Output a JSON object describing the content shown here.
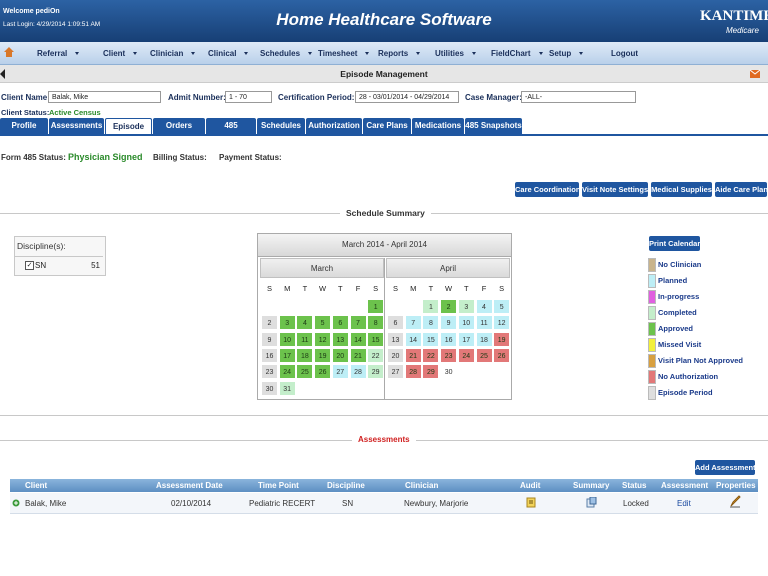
{
  "header": {
    "welcome": "Welcome pediOn",
    "last_login": "Last Login: 4/29/2014 1:09:51 AM",
    "title": "Home Healthcare Software",
    "logo": "KANTIME",
    "logo_sub": "Medicare"
  },
  "nav": [
    "Referral",
    "Client",
    "Clinician",
    "Clinical",
    "Schedules",
    "Timesheet",
    "Reports",
    "Utilities",
    "FieldChart",
    "Setup",
    "Logout"
  ],
  "page_title": "Episode Management",
  "filters": {
    "client_label": "Client Name:",
    "client": "Balak, Mike",
    "admit_label": "Admit Number:",
    "admit": "1 - 70",
    "cert_label": "Certification Period:",
    "cert": "28 - 03/01/2014 - 04/29/2014",
    "case_label": "Case Manager:",
    "case": "-ALL-"
  },
  "client_status": {
    "label": "Client Status:",
    "value": "Active Census"
  },
  "tabs": [
    "Profile",
    "Assessments",
    "Episode",
    "Orders",
    "485",
    "Schedules",
    "Authorization",
    "Care Plans",
    "Medications",
    "485 Snapshots"
  ],
  "status": {
    "form485_label": "Form 485 Status:",
    "form485": "Physician Signed",
    "billing_label": "Billing Status:",
    "payment_label": "Payment Status:"
  },
  "buttons": [
    "Care Coordination",
    "Visit Note Settings",
    "Medical Supplies",
    "Aide Care Plan"
  ],
  "schedule_summary": "Schedule Summary",
  "discipline": {
    "header": "Discipline(s):",
    "rows": [
      {
        "name": "SN",
        "count": 51
      }
    ]
  },
  "calendar": {
    "title": "March 2014 - April 2014",
    "weekdays": [
      "S",
      "M",
      "T",
      "W",
      "T",
      "F",
      "S"
    ],
    "months": [
      {
        "name": "March",
        "weeks": [
          [
            null,
            null,
            null,
            null,
            null,
            null,
            {
              "day": 1,
              "status": "Approved"
            }
          ],
          [
            {
              "day": 2,
              "status": "Episode Period"
            },
            {
              "day": 3,
              "status": "Approved"
            },
            {
              "day": 4,
              "status": "Approved"
            },
            {
              "day": 5,
              "status": "Approved"
            },
            {
              "day": 6,
              "status": "Approved"
            },
            {
              "day": 7,
              "status": "Approved"
            },
            {
              "day": 8,
              "status": "Approved"
            }
          ],
          [
            {
              "day": 9,
              "status": "Episode Period"
            },
            {
              "day": 10,
              "status": "Approved"
            },
            {
              "day": 11,
              "status": "Approved"
            },
            {
              "day": 12,
              "status": "Approved"
            },
            {
              "day": 13,
              "status": "Approved"
            },
            {
              "day": 14,
              "status": "Approved"
            },
            {
              "day": 15,
              "status": "Approved"
            }
          ],
          [
            {
              "day": 16,
              "status": "Episode Period"
            },
            {
              "day": 17,
              "status": "Approved"
            },
            {
              "day": 18,
              "status": "Approved"
            },
            {
              "day": 19,
              "status": "Approved"
            },
            {
              "day": 20,
              "status": "Approved"
            },
            {
              "day": 21,
              "status": "Approved"
            },
            {
              "day": 22,
              "status": "Completed"
            }
          ],
          [
            {
              "day": 23,
              "status": "Episode Period"
            },
            {
              "day": 24,
              "status": "Approved"
            },
            {
              "day": 25,
              "status": "Approved"
            },
            {
              "day": 26,
              "status": "Approved"
            },
            {
              "day": 27,
              "status": "Planned"
            },
            {
              "day": 28,
              "status": "Planned"
            },
            {
              "day": 29,
              "status": "Completed"
            }
          ],
          [
            {
              "day": 30,
              "status": "Episode Period"
            },
            {
              "day": 31,
              "status": "Completed"
            },
            null,
            null,
            null,
            null,
            null
          ]
        ]
      },
      {
        "name": "April",
        "weeks": [
          [
            null,
            null,
            {
              "day": 1,
              "status": "Completed"
            },
            {
              "day": 2,
              "status": "Approved"
            },
            {
              "day": 3,
              "status": "Completed"
            },
            {
              "day": 4,
              "status": "Planned"
            },
            {
              "day": 5,
              "status": "Planned"
            }
          ],
          [
            {
              "day": 6,
              "status": "Episode Period"
            },
            {
              "day": 7,
              "status": "Planned"
            },
            {
              "day": 8,
              "status": "Planned"
            },
            {
              "day": 9,
              "status": "Planned"
            },
            {
              "day": 10,
              "status": "Planned"
            },
            {
              "day": 11,
              "status": "Planned"
            },
            {
              "day": 12,
              "status": "Planned"
            }
          ],
          [
            {
              "day": 13,
              "status": "Episode Period"
            },
            {
              "day": 14,
              "status": "Planned"
            },
            {
              "day": 15,
              "status": "Planned"
            },
            {
              "day": 16,
              "status": "Planned"
            },
            {
              "day": 17,
              "status": "Planned"
            },
            {
              "day": 18,
              "status": "Planned"
            },
            {
              "day": 19,
              "status": "No Authorization"
            }
          ],
          [
            {
              "day": 20,
              "status": "Episode Period"
            },
            {
              "day": 21,
              "status": "No Authorization"
            },
            {
              "day": 22,
              "status": "No Authorization"
            },
            {
              "day": 23,
              "status": "No Authorization"
            },
            {
              "day": 24,
              "status": "No Authorization"
            },
            {
              "day": 25,
              "status": "No Authorization"
            },
            {
              "day": 26,
              "status": "No Authorization"
            }
          ],
          [
            {
              "day": 27,
              "status": "Episode Period"
            },
            {
              "day": 28,
              "status": "No Authorization"
            },
            {
              "day": 29,
              "status": "No Authorization"
            },
            {
              "day": 30
            },
            null,
            null,
            null
          ]
        ]
      }
    ]
  },
  "print_calendar": "Print Calendar",
  "legend": [
    {
      "label": "No Clinician",
      "color": "#c9b48c"
    },
    {
      "label": "Planned",
      "color": "#bdeef6"
    },
    {
      "label": "In-progress",
      "color": "#e060e0"
    },
    {
      "label": "Completed",
      "color": "#c4eecb"
    },
    {
      "label": "Approved",
      "color": "#6cc24c"
    },
    {
      "label": "Missed Visit",
      "color": "#f2f03c"
    },
    {
      "label": "Visit Plan Not Approved",
      "color": "#d8a040"
    },
    {
      "label": "No Authorization",
      "color": "#e27878"
    },
    {
      "label": "Episode Period",
      "color": "#dedede"
    }
  ],
  "assessments": {
    "title": "Assessments",
    "add_button": "Add Assessment",
    "columns": [
      "Client",
      "Assessment Date",
      "Time Point",
      "Discipline",
      "Clinician",
      "Audit",
      "Summary",
      "Status",
      "Assessment",
      "Properties"
    ],
    "rows": [
      {
        "client": "Balak, Mike",
        "date": "02/10/2014",
        "time_point": "Pediatric RECERT",
        "discipline": "SN",
        "clinician": "Newbury, Marjorie",
        "status": "Locked",
        "action": "Edit"
      }
    ]
  }
}
